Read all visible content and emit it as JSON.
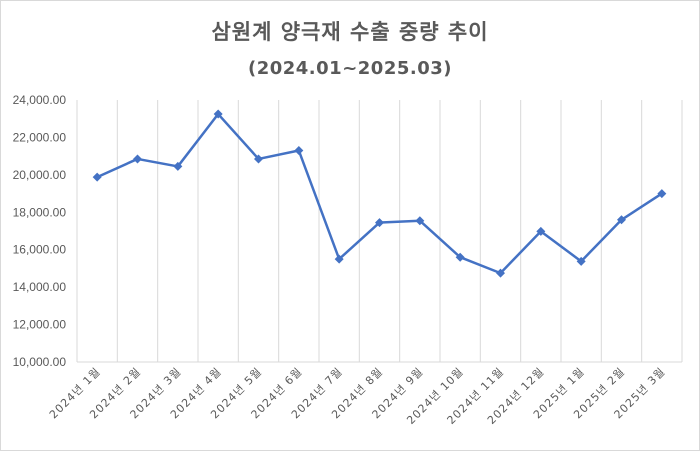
{
  "chart_data": {
    "type": "line",
    "title": "삼원계 양극재 수출 중량 추이",
    "subtitle": "(2024.01~2025.03)",
    "xlabel": "",
    "ylabel": "",
    "ylim": [
      10000,
      24000
    ],
    "ytick_step": 2000,
    "ytick_labels": [
      "10,000.00",
      "12,000.00",
      "14,000.00",
      "16,000.00",
      "18,000.00",
      "20,000.00",
      "22,000.00",
      "24,000.00"
    ],
    "categories": [
      "2024년 1월",
      "2024년 2월",
      "2024년 3월",
      "2024년 4월",
      "2024년 5월",
      "2024년 6월",
      "2024년 7월",
      "2024년 8월",
      "2024년 9월",
      "2024년 10월",
      "2024년 11월",
      "2024년 12월",
      "2025년 1월",
      "2025년 2월",
      "2025년 3월"
    ],
    "series": [
      {
        "values": [
          19880,
          20850,
          20450,
          23250,
          20850,
          21300,
          15500,
          17450,
          17550,
          15600,
          14750,
          16980,
          15380,
          17600,
          19000
        ]
      }
    ],
    "grid": "vertical",
    "legend": "none",
    "colors": {
      "line": "#4472c4",
      "grid": "#d9d9d9",
      "text": "#595959"
    }
  }
}
